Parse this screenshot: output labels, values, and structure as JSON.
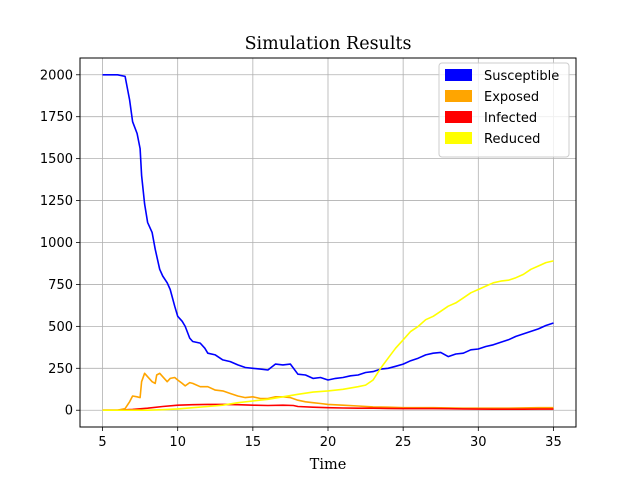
{
  "chart_data": {
    "type": "line",
    "title": "Simulation Results",
    "xlabel": "Time",
    "ylabel": "",
    "xlim": [
      3.5,
      36.5
    ],
    "ylim": [
      -100,
      2100
    ],
    "xticks": [
      5,
      10,
      15,
      20,
      25,
      30,
      35
    ],
    "xtick_labels": [
      "5",
      "10",
      "15",
      "20",
      "25",
      "30",
      "35"
    ],
    "yticks": [
      0,
      250,
      500,
      750,
      1000,
      1250,
      1500,
      1750,
      2000
    ],
    "ytick_labels": [
      "0",
      "250",
      "500",
      "750",
      "1000",
      "1250",
      "1500",
      "1750",
      "2000"
    ],
    "grid": true,
    "legend_position": "top-right",
    "series": [
      {
        "name": "Susceptible",
        "color": "#0000ff",
        "points": [
          [
            5,
            2000
          ],
          [
            6,
            2000
          ],
          [
            6.5,
            1990
          ],
          [
            6.8,
            1850
          ],
          [
            7,
            1720
          ],
          [
            7.3,
            1650
          ],
          [
            7.5,
            1560
          ],
          [
            7.6,
            1400
          ],
          [
            7.8,
            1230
          ],
          [
            8,
            1120
          ],
          [
            8.3,
            1060
          ],
          [
            8.5,
            960
          ],
          [
            8.8,
            840
          ],
          [
            9,
            800
          ],
          [
            9.3,
            760
          ],
          [
            9.5,
            720
          ],
          [
            9.8,
            620
          ],
          [
            10,
            560
          ],
          [
            10.3,
            530
          ],
          [
            10.5,
            500
          ],
          [
            10.8,
            430
          ],
          [
            11,
            410
          ],
          [
            11.5,
            400
          ],
          [
            11.8,
            370
          ],
          [
            12,
            340
          ],
          [
            12.5,
            330
          ],
          [
            13,
            300
          ],
          [
            13.5,
            290
          ],
          [
            14,
            270
          ],
          [
            14.5,
            255
          ],
          [
            15,
            250
          ],
          [
            15.5,
            245
          ],
          [
            16,
            240
          ],
          [
            16.5,
            275
          ],
          [
            17,
            270
          ],
          [
            17.5,
            275
          ],
          [
            18,
            215
          ],
          [
            18.5,
            210
          ],
          [
            19,
            190
          ],
          [
            19.5,
            195
          ],
          [
            20,
            180
          ],
          [
            20.5,
            190
          ],
          [
            21,
            195
          ],
          [
            21.5,
            205
          ],
          [
            22,
            210
          ],
          [
            22.5,
            225
          ],
          [
            23,
            230
          ],
          [
            23.5,
            245
          ],
          [
            24,
            250
          ],
          [
            24.5,
            262
          ],
          [
            25,
            275
          ],
          [
            25.5,
            295
          ],
          [
            26,
            310
          ],
          [
            26.5,
            330
          ],
          [
            27,
            340
          ],
          [
            27.5,
            345
          ],
          [
            28,
            320
          ],
          [
            28.5,
            335
          ],
          [
            29,
            340
          ],
          [
            29.5,
            360
          ],
          [
            30,
            365
          ],
          [
            30.5,
            380
          ],
          [
            31,
            390
          ],
          [
            31.5,
            405
          ],
          [
            32,
            420
          ],
          [
            32.5,
            440
          ],
          [
            33,
            455
          ],
          [
            33.5,
            470
          ],
          [
            34,
            485
          ],
          [
            34.5,
            505
          ],
          [
            35,
            520
          ]
        ]
      },
      {
        "name": "Exposed",
        "color": "#ffa500",
        "points": [
          [
            5,
            0
          ],
          [
            6,
            0
          ],
          [
            6.5,
            10
          ],
          [
            6.8,
            50
          ],
          [
            7,
            85
          ],
          [
            7.3,
            80
          ],
          [
            7.5,
            75
          ],
          [
            7.6,
            170
          ],
          [
            7.8,
            220
          ],
          [
            8,
            200
          ],
          [
            8.3,
            170
          ],
          [
            8.5,
            160
          ],
          [
            8.6,
            210
          ],
          [
            8.8,
            220
          ],
          [
            9,
            200
          ],
          [
            9.3,
            170
          ],
          [
            9.5,
            190
          ],
          [
            9.8,
            195
          ],
          [
            10,
            180
          ],
          [
            10.3,
            160
          ],
          [
            10.5,
            145
          ],
          [
            10.8,
            165
          ],
          [
            11,
            160
          ],
          [
            11.5,
            140
          ],
          [
            12,
            140
          ],
          [
            12.5,
            120
          ],
          [
            13,
            115
          ],
          [
            13.5,
            100
          ],
          [
            14,
            85
          ],
          [
            14.5,
            75
          ],
          [
            15,
            80
          ],
          [
            15.5,
            70
          ],
          [
            16,
            70
          ],
          [
            16.5,
            80
          ],
          [
            17,
            80
          ],
          [
            17.5,
            75
          ],
          [
            18,
            60
          ],
          [
            18.5,
            50
          ],
          [
            19,
            45
          ],
          [
            19.5,
            40
          ],
          [
            20,
            35
          ],
          [
            21,
            30
          ],
          [
            22,
            25
          ],
          [
            23,
            20
          ],
          [
            24,
            18
          ],
          [
            25,
            15
          ],
          [
            26,
            15
          ],
          [
            27,
            15
          ],
          [
            28,
            14
          ],
          [
            29,
            12
          ],
          [
            30,
            12
          ],
          [
            31,
            12
          ],
          [
            32,
            12
          ],
          [
            33,
            14
          ],
          [
            34,
            15
          ],
          [
            35,
            15
          ]
        ]
      },
      {
        "name": "Infected",
        "color": "#ff0000",
        "points": [
          [
            5,
            0
          ],
          [
            6,
            0
          ],
          [
            7,
            5
          ],
          [
            8,
            12
          ],
          [
            9,
            22
          ],
          [
            10,
            30
          ],
          [
            11,
            33
          ],
          [
            12,
            35
          ],
          [
            13,
            35
          ],
          [
            14,
            33
          ],
          [
            15,
            30
          ],
          [
            16,
            28
          ],
          [
            17,
            30
          ],
          [
            17.7,
            28
          ],
          [
            18,
            22
          ],
          [
            19,
            18
          ],
          [
            20,
            15
          ],
          [
            21,
            13
          ],
          [
            22,
            12
          ],
          [
            23,
            12
          ],
          [
            24,
            11
          ],
          [
            25,
            10
          ],
          [
            26,
            10
          ],
          [
            27,
            10
          ],
          [
            28,
            9
          ],
          [
            29,
            8
          ],
          [
            30,
            7
          ],
          [
            31,
            6
          ],
          [
            32,
            6
          ],
          [
            33,
            6
          ],
          [
            34,
            7
          ],
          [
            35,
            7
          ]
        ]
      },
      {
        "name": "Reduced",
        "color": "#ffff00",
        "points": [
          [
            5,
            0
          ],
          [
            6,
            0
          ],
          [
            7,
            0
          ],
          [
            8,
            0
          ],
          [
            9,
            3
          ],
          [
            10,
            8
          ],
          [
            11,
            15
          ],
          [
            12,
            22
          ],
          [
            13,
            30
          ],
          [
            14,
            45
          ],
          [
            15,
            55
          ],
          [
            16,
            65
          ],
          [
            17,
            80
          ],
          [
            18,
            95
          ],
          [
            19,
            108
          ],
          [
            20,
            115
          ],
          [
            21,
            125
          ],
          [
            22,
            140
          ],
          [
            22.5,
            150
          ],
          [
            23,
            180
          ],
          [
            23.5,
            250
          ],
          [
            24,
            310
          ],
          [
            24.5,
            370
          ],
          [
            25,
            420
          ],
          [
            25.5,
            470
          ],
          [
            26,
            500
          ],
          [
            26.5,
            540
          ],
          [
            27,
            560
          ],
          [
            27.5,
            590
          ],
          [
            28,
            620
          ],
          [
            28.5,
            640
          ],
          [
            29,
            670
          ],
          [
            29.5,
            700
          ],
          [
            30,
            720
          ],
          [
            30.5,
            740
          ],
          [
            31,
            760
          ],
          [
            31.5,
            770
          ],
          [
            32,
            775
          ],
          [
            32.5,
            790
          ],
          [
            33,
            810
          ],
          [
            33.5,
            840
          ],
          [
            34,
            860
          ],
          [
            34.5,
            880
          ],
          [
            35,
            890
          ]
        ]
      }
    ]
  }
}
